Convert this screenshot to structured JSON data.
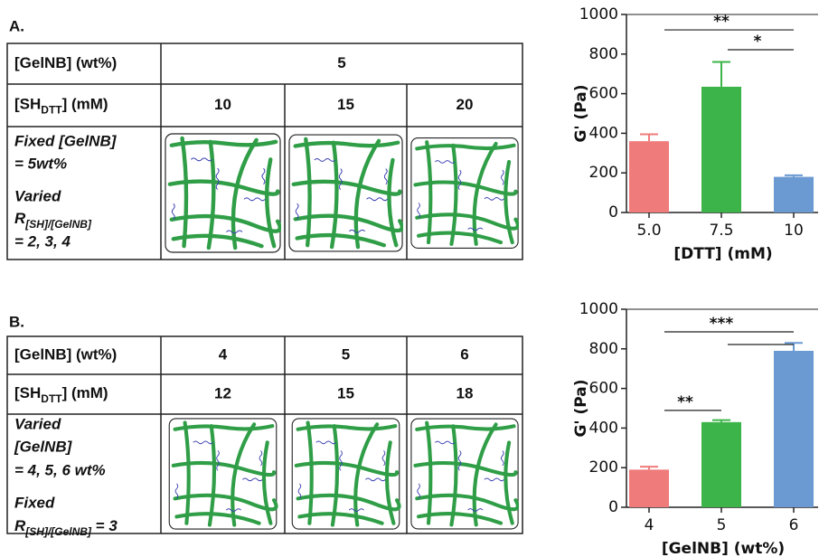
{
  "panels": [
    {
      "label": "A.",
      "table": {
        "rows": [
          [
            "[GelNB] (wt%)",
            "5"
          ],
          [
            {
              "text": "[SH",
              "sub": "DTT",
              "after": "] (mM)"
            },
            "10",
            "15",
            "20"
          ]
        ],
        "description": [
          "Fixed [GelNB]",
          "= 5wt%",
          "Varied",
          {
            "text": "R",
            "sub": "[SH]/[GelNB]"
          },
          "= 2, 3, 4"
        ]
      }
    },
    {
      "label": "B.",
      "table": {
        "rows": [
          [
            "[GelNB] (wt%)",
            "4",
            "5",
            "6"
          ],
          [
            {
              "text": "[SH",
              "sub": "DTT",
              "after": "] (mM)"
            },
            "12",
            "15",
            "18"
          ]
        ],
        "description": [
          "Varied",
          "[GelNB]",
          "= 4, 5, 6 wt%",
          "Fixed",
          {
            "text": "R",
            "sub": "[SH]/[GelNB]",
            "after": "  = 3"
          }
        ]
      }
    }
  ],
  "chart_data": [
    {
      "type": "bar",
      "y_label": "G' (Pa)",
      "x_label": "[DTT] (mM)",
      "categories": [
        "5.0",
        "7.5",
        "10"
      ],
      "values": [
        360,
        635,
        180
      ],
      "errors": [
        35,
        125,
        8
      ],
      "colors": [
        "#f07b7b",
        "#3cb449",
        "#6b9ad3"
      ],
      "ylim": [
        0,
        1000
      ],
      "yticks": [
        0,
        200,
        400,
        600,
        800,
        1000
      ],
      "annotations": [
        {
          "from": 0,
          "to": 2,
          "y": 922,
          "label": "**"
        },
        {
          "from": 1,
          "to": 2,
          "y": 822,
          "label": "*"
        }
      ]
    },
    {
      "type": "bar",
      "y_label": "G' (Pa)",
      "x_label": "[GelNB] (wt%)",
      "categories": [
        "4",
        "5",
        "6"
      ],
      "values": [
        190,
        430,
        790
      ],
      "errors": [
        15,
        10,
        40
      ],
      "colors": [
        "#f07b7b",
        "#3cb449",
        "#6b9ad3"
      ],
      "ylim": [
        0,
        1000
      ],
      "yticks": [
        0,
        200,
        400,
        600,
        800,
        1000
      ],
      "annotations": [
        {
          "from": 0,
          "to": 2,
          "y": 886,
          "label": "***"
        },
        {
          "from": 1,
          "to": 2,
          "y": 822
        },
        {
          "from": 0,
          "to": 1,
          "y": 489,
          "label": "**"
        }
      ]
    }
  ]
}
